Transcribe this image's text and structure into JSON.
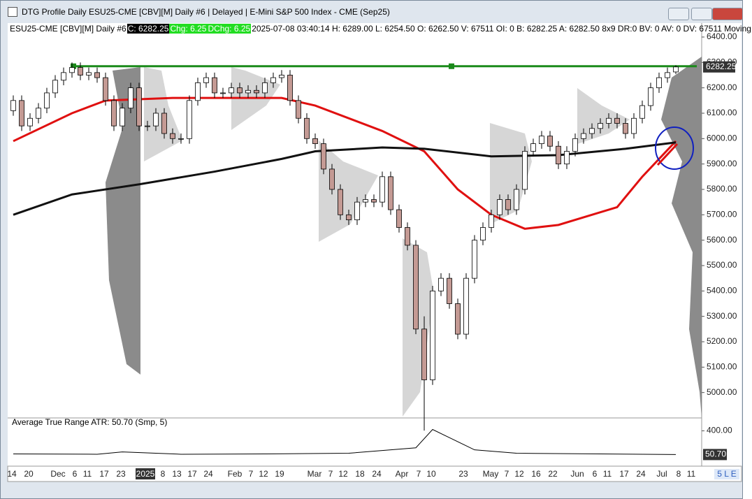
{
  "window_title": "DTG Profile Daily ESU25-CME [CBV][M]  Daily #6 | Delayed | E-Mini S&P 500 Index - CME (Sep25)",
  "chart_data": {
    "type": "candlestick",
    "info": {
      "symbol": "ESU25-CME [CBV][M]  Daily #6",
      "close": "C: 6282.25",
      "chg": "Chg: 6.25",
      "dchg": "DChg: 6.25",
      "details": "2025-07-08 03:40:14 H: 6289.00 L: 6254.50 O: 6262.50 V: 67511 OI: 0 B: 6282.25 A: 6282.50 8x9 DR:0 BV: 0 AV: 0 DV: 67511 Moving"
    },
    "open": [
      6110,
      6150,
      6050,
      6080,
      6120,
      6180,
      6230,
      6260,
      6280,
      6250,
      6260,
      6240,
      6150,
      6050,
      6120,
      6200,
      6050,
      6050,
      6100,
      6020,
      6000,
      6000,
      6150,
      6220,
      6240,
      6180,
      6180,
      6200,
      6180,
      6190,
      6180,
      6220,
      6240,
      6250,
      6150,
      6080,
      6000,
      5980,
      5880,
      5800,
      5700,
      5680,
      5750,
      5760,
      5750,
      5850,
      5720,
      5650,
      5580,
      5250,
      5050,
      5400,
      5450,
      5350,
      5230,
      5450,
      5600,
      5650,
      5700,
      5760,
      5720,
      5800,
      5950,
      5980,
      6010,
      5970,
      5900,
      5950,
      6000,
      6020,
      6040,
      6060,
      6080,
      6060,
      6020,
      6080,
      6130,
      6200,
      6240,
      6262.5
    ],
    "high": [
      6170,
      6170,
      6100,
      6140,
      6200,
      6250,
      6280,
      6300,
      6300,
      6280,
      6280,
      6260,
      6170,
      6140,
      6220,
      6220,
      6070,
      6120,
      6120,
      6040,
      6020,
      6170,
      6240,
      6260,
      6260,
      6200,
      6220,
      6220,
      6210,
      6210,
      6240,
      6260,
      6270,
      6270,
      6170,
      6100,
      6020,
      6000,
      5900,
      5820,
      5720,
      5770,
      5780,
      5780,
      5870,
      5870,
      5740,
      5670,
      5600,
      5300,
      5420,
      5470,
      5470,
      5370,
      5470,
      5620,
      5670,
      5720,
      5780,
      5780,
      5820,
      5970,
      6000,
      6030,
      6030,
      5990,
      5970,
      6020,
      6040,
      6060,
      6080,
      6100,
      6100,
      6080,
      6100,
      6150,
      6220,
      6260,
      6280,
      6289
    ],
    "low": [
      6090,
      6030,
      6030,
      6060,
      6100,
      6160,
      6210,
      6240,
      6230,
      6230,
      6220,
      6130,
      6030,
      6030,
      6100,
      6030,
      6030,
      6030,
      6000,
      5980,
      5980,
      5980,
      6130,
      6200,
      6160,
      6160,
      6160,
      6160,
      6160,
      6160,
      6160,
      6200,
      6220,
      6130,
      6060,
      5980,
      5960,
      5860,
      5780,
      5680,
      5660,
      5660,
      5730,
      5730,
      5730,
      5700,
      5630,
      5560,
      5230,
      4850,
      5030,
      5380,
      5330,
      5210,
      5210,
      5430,
      5580,
      5630,
      5680,
      5700,
      5700,
      5780,
      5930,
      5960,
      5950,
      5880,
      5880,
      5930,
      5980,
      6000,
      6020,
      6040,
      6040,
      6000,
      6000,
      6060,
      6110,
      6180,
      6220,
      6254.5
    ],
    "close": [
      6150,
      6050,
      6080,
      6120,
      6180,
      6230,
      6260,
      6280,
      6250,
      6260,
      6240,
      6150,
      6050,
      6120,
      6200,
      6050,
      6050,
      6100,
      6020,
      6000,
      6000,
      6150,
      6220,
      6240,
      6180,
      6180,
      6200,
      6180,
      6190,
      6180,
      6220,
      6240,
      6250,
      6150,
      6080,
      6000,
      5980,
      5880,
      5800,
      5700,
      5680,
      5750,
      5760,
      5750,
      5850,
      5720,
      5650,
      5580,
      5250,
      5050,
      5400,
      5450,
      5350,
      5230,
      5450,
      5600,
      5650,
      5700,
      5760,
      5720,
      5800,
      5950,
      5980,
      6010,
      5970,
      5900,
      5950,
      6000,
      6020,
      6040,
      6060,
      6080,
      6060,
      6020,
      6080,
      6130,
      6200,
      6240,
      6260,
      6282.25
    ],
    "lines": [
      {
        "color": "#e01010",
        "x": [
          0,
          7,
          11,
          19,
          32,
          36,
          44,
          49,
          53,
          57,
          61,
          65,
          70,
          72,
          75,
          79
        ],
        "values": [
          5990,
          6100,
          6150,
          6160,
          6160,
          6130,
          6030,
          5950,
          5800,
          5700,
          5645,
          5660,
          5710,
          5730,
          5850,
          5990
        ]
      },
      {
        "color": "#111111",
        "x": [
          0,
          7,
          15,
          24,
          32,
          36,
          44,
          49,
          57,
          65,
          73,
          79
        ],
        "values": [
          5700,
          5780,
          5820,
          5870,
          5920,
          5950,
          5965,
          5960,
          5930,
          5935,
          5960,
          5985
        ]
      }
    ],
    "level": {
      "color": "#1a8a1a",
      "value": 6285
    },
    "ylim": [
      4900,
      6455
    ],
    "yticks": [
      {
        "value": 6400,
        "label": "6400.00"
      },
      {
        "value": 6300,
        "label": "6300.00"
      },
      {
        "value": 6200,
        "label": "6200.00"
      },
      {
        "value": 6100,
        "label": "6100.00"
      },
      {
        "value": 6000,
        "label": "6000.00"
      },
      {
        "value": 5900,
        "label": "5900.00"
      },
      {
        "value": 5800,
        "label": "5800.00"
      },
      {
        "value": 5700,
        "label": "5700.00"
      },
      {
        "value": 5600,
        "label": "5600.00"
      },
      {
        "value": 5500,
        "label": "5500.00"
      },
      {
        "value": 5400,
        "label": "5400.00"
      },
      {
        "value": 5300,
        "label": "5300.00"
      },
      {
        "value": 5200,
        "label": "5200.00"
      },
      {
        "value": 5100,
        "label": "5100.00"
      },
      {
        "value": 5000,
        "label": "5000.00"
      }
    ],
    "last_price": {
      "value": 6282.25,
      "label": "6282.25"
    },
    "xtick_labels": [
      "14",
      "20",
      "Dec",
      "6",
      "11",
      "17",
      "23",
      "2025",
      "8",
      "13",
      "17",
      "24",
      "Feb",
      "7",
      "12",
      "19",
      "Mar",
      "7",
      "12",
      "18",
      "24",
      "Apr",
      "7",
      "10",
      "23",
      "May",
      "7",
      "12",
      "16",
      "22",
      "Jun",
      "6",
      "11",
      "17",
      "24",
      "Jul",
      "8",
      "11"
    ],
    "atr": {
      "title": "Average True Range  ATR: 50.70  (Smp, 5)",
      "color": "#000000",
      "x": [
        0,
        10,
        13,
        20,
        30,
        40,
        48,
        50,
        52,
        55,
        60,
        70,
        79
      ],
      "values": [
        60,
        55,
        90,
        55,
        60,
        70,
        150,
        420,
        300,
        120,
        70,
        60,
        50.7
      ],
      "ylim": [
        -110,
        590
      ],
      "yticks": [
        {
          "value": 400,
          "label": "400.00"
        }
      ],
      "last": {
        "value": 50.7,
        "label": "50.70"
      }
    },
    "corner_label": "5 L E"
  }
}
